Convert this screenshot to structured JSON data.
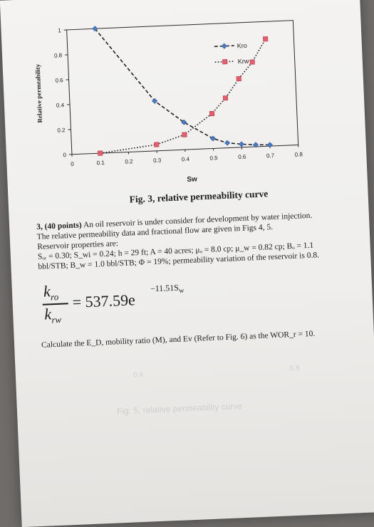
{
  "chart_data": {
    "type": "line",
    "title": "",
    "xlabel": "Sw",
    "ylabel": "Relative permeability",
    "xlim": [
      0,
      0.8
    ],
    "ylim": [
      0,
      1
    ],
    "x_ticks": [
      "0",
      "0.1",
      "0.2",
      "0.3",
      "0.4",
      "0.5",
      "0.6",
      "0.7",
      "0.8"
    ],
    "y_ticks": [
      "0",
      "0.2",
      "0.4",
      "0.6",
      "0.8",
      "1"
    ],
    "legend_position": "top-right",
    "grid": false,
    "series": [
      {
        "name": "Kro",
        "color": "#4a7ac0",
        "marker": "diamond",
        "line": "dashed",
        "x": [
          0.1,
          0.3,
          0.4,
          0.5,
          0.55,
          0.6,
          0.65,
          0.7
        ],
        "y": [
          1.0,
          0.4,
          0.22,
          0.08,
          0.04,
          0.025,
          0.015,
          0.01
        ]
      },
      {
        "name": "Krw",
        "color": "#e06070",
        "marker": "square",
        "line": "dotted",
        "x": [
          0.1,
          0.3,
          0.4,
          0.5,
          0.55,
          0.6,
          0.65,
          0.7
        ],
        "y": [
          0.0,
          0.05,
          0.12,
          0.28,
          0.4,
          0.55,
          0.68,
          0.86
        ]
      }
    ]
  },
  "figure": {
    "caption": "Fig. 3, relative permeability curve"
  },
  "problem": {
    "heading": "3, (40 points)",
    "line1_rest": " An oil reservoir is under consider for development by water injection.",
    "line2": "The relative permeability data and fractional flow are given in Figs 4, 5.",
    "line3": "Reservoir properties are:",
    "line4": "Sₒᵣ = 0.30; S_wi = 0.24; h = 29 ft; A = 40 acres; μₒ = 8.0 cp; μ_w = 0.82 cp; Bₒ = 1.1",
    "line5": "bbl/STB; B_w = 1.0 bbl/STB; Φ = 19%; permeability variation of the reservoir is 0.8.",
    "question": "Calculate the E_D, mobility ratio (M), and Ev (Refer to Fig. 6) as the WOR_r = 10."
  },
  "formula": {
    "numerator": "k",
    "numerator_sub": "ro",
    "denominator": "k",
    "denominator_sub": "rw",
    "rhs": "= 537.59e",
    "exponent": "−11.51S",
    "exponent_sub": "w"
  },
  "bleed_through": {
    "tick_a": "0.4",
    "tick_b": "0.8",
    "caption": "Fig. 5, relative permeability curve"
  }
}
